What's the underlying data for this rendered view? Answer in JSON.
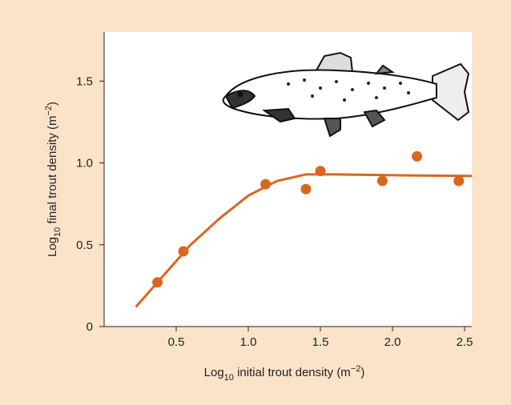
{
  "chart_data": {
    "type": "scatter",
    "x_label": {
      "prefix": "Log",
      "sub": "10",
      "main": " initial trout density (m",
      "sup": "−2",
      "end": ")"
    },
    "y_label": {
      "prefix": "Log",
      "sub": "10",
      "main": " final trout density (m",
      "sup": "−2",
      "end": ")"
    },
    "x": [
      0.37,
      0.55,
      1.12,
      1.4,
      1.5,
      1.93,
      2.17,
      2.46
    ],
    "values": [
      0.27,
      0.46,
      0.87,
      0.84,
      0.95,
      0.89,
      1.04,
      0.89
    ],
    "color": "#d9661f",
    "fit": {
      "x": [
        0.22,
        0.4,
        0.6,
        0.8,
        1.0,
        1.2,
        1.4,
        1.6,
        2.0,
        2.55
      ],
      "values": [
        0.12,
        0.3,
        0.5,
        0.66,
        0.8,
        0.89,
        0.93,
        0.93,
        0.925,
        0.92
      ]
    },
    "xlim": [
      0,
      2.55
    ],
    "ylim": [
      0,
      1.8
    ],
    "xticks": [
      0.5,
      {
        "value": 1,
        "label": "1.0"
      },
      1.5,
      {
        "value": 2,
        "label": "2.0"
      },
      2.5
    ],
    "yticks": [
      0,
      0.5,
      {
        "value": 1,
        "label": "1.0"
      },
      1.5
    ]
  }
}
